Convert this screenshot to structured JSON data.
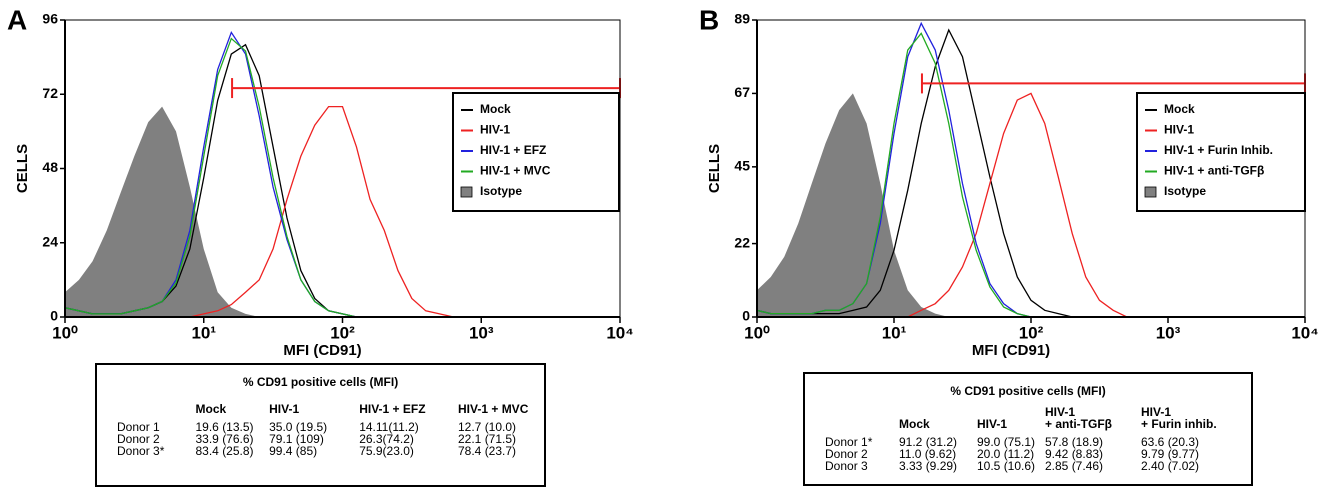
{
  "chart_data": [
    {
      "type": "line",
      "panel_label": "A",
      "y_label": "CELLS",
      "x_label": "MFI (CD91)",
      "xscale": "log",
      "xlim": [
        1,
        10000
      ],
      "ylim": [
        0,
        96
      ],
      "xticks": [
        {
          "value": 1,
          "label": "10⁰"
        },
        {
          "value": 10,
          "label": "10¹"
        },
        {
          "value": 100,
          "label": "10²"
        },
        {
          "value": 1000,
          "label": "10³"
        },
        {
          "value": 10000,
          "label": "10⁴"
        }
      ],
      "yticks": [
        0,
        24,
        48,
        72,
        96
      ],
      "x": [
        1,
        1.26,
        1.58,
        2,
        2.51,
        3.16,
        3.98,
        5.01,
        6.31,
        7.94,
        10,
        12.6,
        15.8,
        20,
        25.1,
        31.6,
        39.8,
        50.1,
        63.1,
        79.4,
        100,
        126,
        158,
        200,
        251,
        316,
        398,
        501,
        631,
        794,
        1000
      ],
      "gate": {
        "x": [
          16,
          10000
        ],
        "y": 74,
        "color": "#ee2222"
      },
      "series": [
        {
          "name": "Mock",
          "color": "#000000",
          "values": [
            3,
            2,
            1,
            1,
            1,
            2,
            3,
            5,
            10,
            22,
            45,
            70,
            85,
            88,
            78,
            55,
            32,
            15,
            6,
            2,
            1,
            0,
            0,
            0,
            0,
            0,
            0,
            0,
            0,
            0,
            0
          ]
        },
        {
          "name": "HIV-1",
          "color": "#ee2222",
          "values": [
            0,
            0,
            0,
            0,
            0,
            0,
            0,
            0,
            0,
            0,
            1,
            2,
            4,
            8,
            12,
            22,
            38,
            52,
            62,
            68,
            68,
            55,
            38,
            28,
            15,
            6,
            2,
            1,
            0,
            0,
            0
          ]
        },
        {
          "name": "HIV-1 + EFZ",
          "color": "#2222dd",
          "values": [
            3,
            2,
            1,
            1,
            1,
            2,
            3,
            5,
            12,
            28,
            55,
            80,
            92,
            85,
            65,
            42,
            25,
            12,
            5,
            2,
            1,
            0,
            0,
            0,
            0,
            0,
            0,
            0,
            0,
            0,
            0
          ]
        },
        {
          "name": "HIV-1 + MVC",
          "color": "#22aa22",
          "values": [
            3,
            2,
            1,
            1,
            1,
            2,
            3,
            5,
            11,
            26,
            52,
            78,
            90,
            86,
            68,
            45,
            26,
            12,
            5,
            2,
            1,
            0,
            0,
            0,
            0,
            0,
            0,
            0,
            0,
            0,
            0
          ]
        },
        {
          "name": "Isotype",
          "color": "#808080",
          "fill": true,
          "values": [
            8,
            12,
            18,
            28,
            40,
            52,
            63,
            68,
            60,
            42,
            22,
            8,
            3,
            1,
            0,
            0,
            0,
            0,
            0,
            0,
            0,
            0,
            0,
            0,
            0,
            0,
            0,
            0,
            0,
            0,
            0
          ]
        }
      ]
    },
    {
      "type": "line",
      "panel_label": "B",
      "y_label": "CELLS",
      "x_label": "MFI (CD91)",
      "xscale": "log",
      "xlim": [
        1,
        10000
      ],
      "ylim": [
        0,
        89
      ],
      "xticks": [
        {
          "value": 1,
          "label": "10⁰"
        },
        {
          "value": 10,
          "label": "10¹"
        },
        {
          "value": 100,
          "label": "10²"
        },
        {
          "value": 1000,
          "label": "10³"
        },
        {
          "value": 10000,
          "label": "10⁴"
        }
      ],
      "yticks": [
        0,
        22,
        45,
        67,
        89
      ],
      "x": [
        1,
        1.26,
        1.58,
        2,
        2.51,
        3.16,
        3.98,
        5.01,
        6.31,
        7.94,
        10,
        12.6,
        15.8,
        20,
        25.1,
        31.6,
        39.8,
        50.1,
        63.1,
        79.4,
        100,
        126,
        158,
        200,
        251,
        316,
        398,
        501,
        631,
        794,
        1000
      ],
      "gate": {
        "x": [
          16,
          10000
        ],
        "y": 70,
        "color": "#ee2222"
      },
      "series": [
        {
          "name": "Mock",
          "color": "#000000",
          "values": [
            2,
            1,
            1,
            1,
            1,
            1,
            1,
            2,
            3,
            8,
            20,
            38,
            58,
            75,
            86,
            78,
            60,
            42,
            25,
            12,
            5,
            2,
            1,
            0,
            0,
            0,
            0,
            0,
            0,
            0,
            0
          ]
        },
        {
          "name": "HIV-1",
          "color": "#ee2222",
          "values": [
            0,
            0,
            0,
            0,
            0,
            0,
            0,
            0,
            0,
            0,
            0,
            0,
            2,
            4,
            8,
            15,
            25,
            40,
            55,
            65,
            67,
            58,
            42,
            25,
            12,
            5,
            2,
            0,
            0,
            0,
            0
          ]
        },
        {
          "name": "HIV-1 + Furin Inhib.",
          "color": "#2222dd",
          "values": [
            2,
            1,
            1,
            1,
            1,
            2,
            2,
            4,
            10,
            28,
            55,
            78,
            88,
            80,
            62,
            40,
            22,
            10,
            4,
            1,
            0,
            0,
            0,
            0,
            0,
            0,
            0,
            0,
            0,
            0,
            0
          ]
        },
        {
          "name": "HIV-1 + anti-TGFβ",
          "color": "#22aa22",
          "values": [
            2,
            1,
            1,
            1,
            1,
            2,
            2,
            4,
            10,
            30,
            58,
            80,
            85,
            76,
            58,
            36,
            20,
            9,
            3,
            1,
            0,
            0,
            0,
            0,
            0,
            0,
            0,
            0,
            0,
            0,
            0
          ]
        },
        {
          "name": "Isotype",
          "color": "#808080",
          "fill": true,
          "values": [
            8,
            12,
            18,
            28,
            40,
            52,
            62,
            67,
            58,
            40,
            20,
            8,
            3,
            1,
            0,
            0,
            0,
            0,
            0,
            0,
            0,
            0,
            0,
            0,
            0,
            0,
            0,
            0,
            0,
            0,
            0
          ]
        }
      ]
    }
  ],
  "tables": [
    {
      "title": "% CD91 positive  cells (MFI)",
      "columns": [
        "Mock",
        "HIV-1",
        "HIV-1 + EFZ",
        "HIV-1 + MVC"
      ],
      "rows": [
        [
          "Donor 1",
          "19.6 (13.5)",
          "35.0 (19.5)",
          "14.11(11.2)",
          "12.7 (10.0)"
        ],
        [
          "Donor 2",
          "33.9 (76.6)",
          "79.1 (109)",
          "26.3(74.2)",
          "22.1 (71.5)"
        ],
        [
          "Donor 3*",
          "83.4 (25.8)",
          "99.4 (85)",
          "75.9(23.0)",
          "78.4 (23.7)"
        ]
      ]
    },
    {
      "title": "% CD91 positive  cells (MFI)",
      "columns": [
        "Mock",
        "HIV-1",
        "HIV-1\n+ anti-TGFβ",
        "HIV-1\n+ Furin inhib."
      ],
      "rows": [
        [
          "Donor 1*",
          "91.2 (31.2)",
          "99.0 (75.1)",
          "57.8 (18.9)",
          "63.6 (20.3)"
        ],
        [
          "Donor 2",
          "11.0 (9.62)",
          "20.0 (11.2)",
          "9.42 (8.83)",
          "9.79 (9.77)"
        ],
        [
          "Donor 3",
          "3.33 (9.29)",
          "10.5 (10.6)",
          "2.85 (7.46)",
          "2.40 (7.02)"
        ]
      ]
    }
  ]
}
